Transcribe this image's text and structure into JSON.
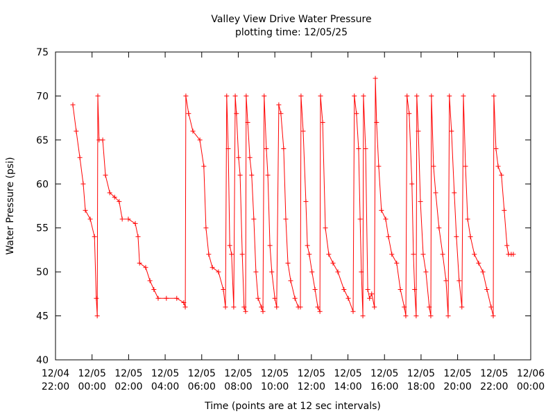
{
  "chart_data": {
    "type": "line",
    "title": "Valley View Drive Water Pressure",
    "subtitle": "plotting time: 12/05/25",
    "x_label": "Time (points are at 12 sec intervals)",
    "y_label": "Water Pressure (psi)",
    "color": "#ff0000",
    "marker": "+",
    "xlim": [
      "12/04 22:00",
      "12/06 00:00"
    ],
    "xticks": [
      "12/04 22:00",
      "12/05 00:00",
      "12/05 02:00",
      "12/05 04:00",
      "12/05 06:00",
      "12/05 08:00",
      "12/05 10:00",
      "12/05 12:00",
      "12/05 14:00",
      "12/05 16:00",
      "12/05 18:00",
      "12/05 20:00",
      "12/05 22:00",
      "12/06 00:00"
    ],
    "ylim": [
      40,
      75
    ],
    "yticks": [
      40,
      45,
      50,
      55,
      60,
      65,
      70,
      75
    ],
    "x": [
      "12/04 22:57",
      "12/04 23:08",
      "12/04 23:20",
      "12/04 23:31",
      "12/04 23:38",
      "12/04 23:54",
      "12/05 00:08",
      "12/05 00:14",
      "12/05 00:17",
      "12/05 00:19",
      "12/05 00:23",
      "12/05 00:35",
      "12/05 00:44",
      "12/05 00:58",
      "12/05 01:14",
      "12/05 01:29",
      "12/05 01:39",
      "12/05 01:59",
      "12/05 02:22",
      "12/05 02:31",
      "12/05 02:36",
      "12/05 02:56",
      "12/05 03:10",
      "12/05 03:23",
      "12/05 03:37",
      "12/05 04:04",
      "12/05 04:38",
      "12/05 05:01",
      "12/05 05:06",
      "12/05 05:08",
      "12/05 05:17",
      "12/05 05:31",
      "12/05 05:54",
      "12/05 06:07",
      "12/05 06:14",
      "12/05 06:23",
      "12/05 06:35",
      "12/05 06:55",
      "12/05 07:11",
      "12/05 07:18",
      "12/05 07:22",
      "12/05 07:27",
      "12/05 07:32",
      "12/05 07:38",
      "12/05 07:45",
      "12/05 07:50",
      "12/05 07:54",
      "12/05 08:01",
      "12/05 08:06",
      "12/05 08:13",
      "12/05 08:19",
      "12/05 08:24",
      "12/05 08:26",
      "12/05 08:31",
      "12/05 08:38",
      "12/05 08:44",
      "12/05 08:51",
      "12/05 08:58",
      "12/05 09:05",
      "12/05 09:16",
      "12/05 09:21",
      "12/05 09:25",
      "12/05 09:32",
      "12/05 09:37",
      "12/05 09:44",
      "12/05 09:50",
      "12/05 10:00",
      "12/05 10:06",
      "12/05 10:13",
      "12/05 10:20",
      "12/05 10:29",
      "12/05 10:36",
      "12/05 10:43",
      "12/05 10:52",
      "12/05 11:06",
      "12/05 11:17",
      "12/05 11:24",
      "12/05 11:26",
      "12/05 11:33",
      "12/05 11:42",
      "12/05 11:47",
      "12/05 11:53",
      "12/05 12:02",
      "12/05 12:12",
      "12/05 12:21",
      "12/05 12:28",
      "12/05 12:30",
      "12/05 12:37",
      "12/05 12:46",
      "12/05 12:57",
      "12/05 13:11",
      "12/05 13:27",
      "12/05 13:47",
      "12/05 14:01",
      "12/05 14:17",
      "12/05 14:21",
      "12/05 14:28",
      "12/05 14:35",
      "12/05 14:40",
      "12/05 14:44",
      "12/05 14:49",
      "12/05 14:51",
      "12/05 14:58",
      "12/05 15:05",
      "12/05 15:11",
      "12/05 15:18",
      "12/05 15:27",
      "12/05 15:30",
      "12/05 15:34",
      "12/05 15:41",
      "12/05 15:50",
      "12/05 16:04",
      "12/05 16:13",
      "12/05 16:24",
      "12/05 16:40",
      "12/05 16:52",
      "12/05 17:05",
      "12/05 17:10",
      "12/05 17:14",
      "12/05 17:21",
      "12/05 17:30",
      "12/05 17:35",
      "12/05 17:39",
      "12/05 17:44",
      "12/05 17:46",
      "12/05 17:51",
      "12/05 17:58",
      "12/05 18:07",
      "12/05 18:16",
      "12/05 18:27",
      "12/05 18:32",
      "12/05 18:34",
      "12/05 18:41",
      "12/05 18:48",
      "12/05 18:59",
      "12/05 19:11",
      "12/05 19:22",
      "12/05 19:29",
      "12/05 19:33",
      "12/05 19:40",
      "12/05 19:49",
      "12/05 19:56",
      "12/05 20:05",
      "12/05 20:14",
      "12/05 20:19",
      "12/05 20:26",
      "12/05 20:33",
      "12/05 20:42",
      "12/05 20:55",
      "12/05 21:09",
      "12/05 21:23",
      "12/05 21:36",
      "12/05 21:50",
      "12/05 21:57",
      "12/05 21:59",
      "12/05 22:06",
      "12/05 22:13",
      "12/05 22:24",
      "12/05 22:33",
      "12/05 22:42",
      "12/05 22:47",
      "12/05 22:56",
      "12/05 23:03"
    ],
    "values": [
      69,
      66,
      63,
      60,
      57,
      56,
      54,
      47,
      45,
      70,
      65,
      65,
      61,
      59,
      58.5,
      58,
      56,
      56,
      55.5,
      54,
      51,
      50.5,
      49,
      48,
      47,
      47,
      47,
      46.5,
      46,
      70,
      68,
      66,
      65,
      62,
      55,
      52,
      50.5,
      50,
      48,
      46,
      70,
      64,
      53,
      52,
      46,
      70,
      68,
      63,
      61,
      52,
      46,
      45.5,
      70,
      67,
      63,
      61,
      56,
      50,
      47,
      46,
      45.5,
      70,
      64,
      61,
      53,
      50,
      47,
      46,
      69,
      68,
      64,
      56,
      51,
      49,
      47,
      46,
      46,
      70,
      66,
      58,
      53,
      52,
      50,
      48,
      46,
      45.5,
      70,
      67,
      55,
      52,
      51,
      50,
      48,
      47,
      45.5,
      70,
      68,
      64,
      56,
      50,
      45,
      70,
      64,
      48,
      47,
      47.5,
      46,
      72,
      67,
      62,
      57,
      56,
      54,
      52,
      51,
      48,
      46,
      45,
      70,
      68,
      60,
      52,
      48,
      45,
      70,
      66,
      58,
      52,
      50,
      46,
      45,
      70,
      62,
      59,
      55,
      52,
      49,
      45,
      70,
      66,
      59,
      54,
      49,
      46,
      70,
      62,
      56,
      54,
      52,
      51,
      50,
      48,
      46,
      45,
      70,
      64,
      62,
      61,
      57,
      53,
      52,
      52,
      52
    ]
  }
}
